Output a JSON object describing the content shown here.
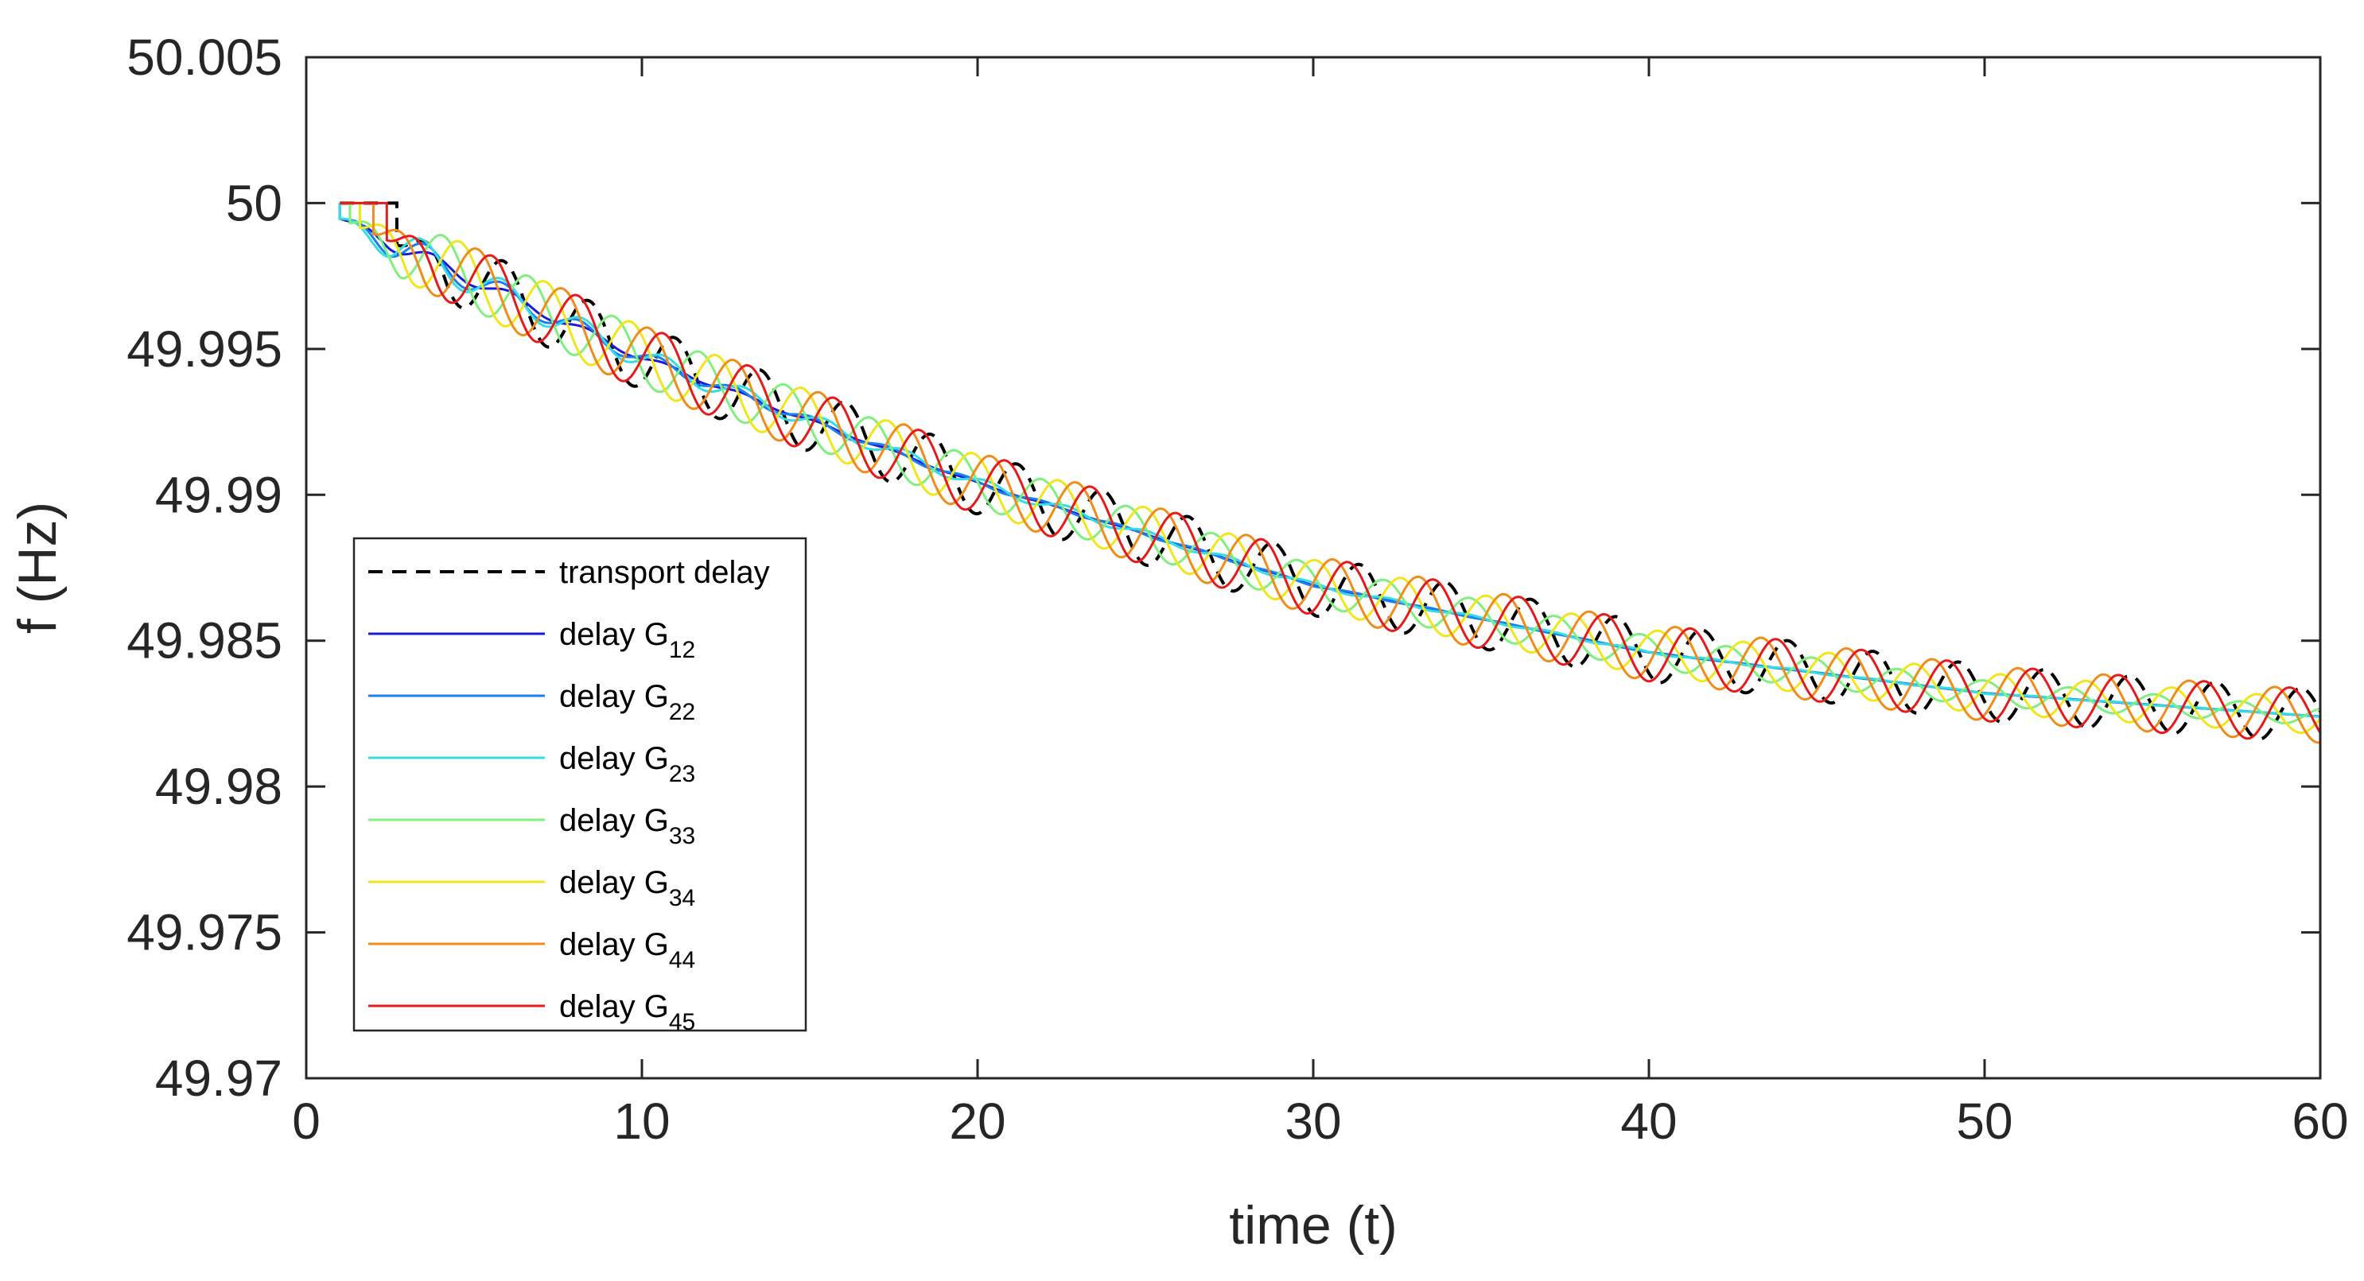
{
  "chart_data": {
    "type": "line",
    "title": "",
    "xlabel": "time (t)",
    "ylabel": "f (Hz)",
    "xlim": [
      0,
      60
    ],
    "ylim": [
      49.97,
      50.005
    ],
    "x_ticks": [
      0,
      10,
      20,
      30,
      40,
      50,
      60
    ],
    "x_tick_labels": [
      "0",
      "10",
      "20",
      "30",
      "40",
      "50",
      "60"
    ],
    "y_ticks": [
      49.97,
      49.975,
      49.98,
      49.985,
      49.99,
      49.995,
      50,
      50.005
    ],
    "y_tick_labels": [
      "49.97",
      "49.975",
      "49.98",
      "49.985",
      "49.99",
      "49.995",
      "50",
      "50.005"
    ],
    "grid": false,
    "legend_position": "left",
    "legend_prefix": "delay G",
    "series": [
      {
        "name": "transport delay",
        "label": "transport delay",
        "color": "#000000",
        "dash": true,
        "start": 2.7,
        "trend": {
          "t": [
            0,
            10,
            20,
            30,
            40,
            50,
            60
          ],
          "f": [
            50.0,
            49.9947,
            49.9904,
            49.9869,
            49.9846,
            49.9832,
            49.9824
          ]
        },
        "osc_amp": [
          0.00115,
          0.00092
        ],
        "osc_period": 2.55,
        "phase": 0
      },
      {
        "name": "delay G12",
        "label": "delay G",
        "sub": "12",
        "color": "#1a1ad9",
        "dash": false,
        "start": 1.0,
        "trend": {
          "t": [
            0,
            10,
            20,
            30,
            40,
            50,
            60
          ],
          "f": [
            50.0,
            49.9947,
            49.9904,
            49.9869,
            49.9846,
            49.9832,
            49.9824
          ]
        },
        "osc_amp": [
          0.00035,
          0.0
        ],
        "osc_period": 2.3,
        "phase": 0.2,
        "osc_decay": 8
      },
      {
        "name": "delay G22",
        "label": "delay G",
        "sub": "22",
        "color": "#1a7ff0",
        "dash": false,
        "start": 1.0,
        "trend": {
          "t": [
            0,
            10,
            20,
            30,
            40,
            50,
            60
          ],
          "f": [
            50.0,
            49.9947,
            49.9904,
            49.9869,
            49.9846,
            49.9832,
            49.9824
          ]
        },
        "osc_amp": [
          0.0006,
          0.0
        ],
        "osc_period": 2.3,
        "phase": 0.8,
        "osc_decay": 10
      },
      {
        "name": "delay G23",
        "label": "delay G",
        "sub": "23",
        "color": "#33dde6",
        "dash": false,
        "start": 1.0,
        "trend": {
          "t": [
            0,
            10,
            20,
            30,
            40,
            50,
            60
          ],
          "f": [
            50.0,
            49.9947,
            49.9904,
            49.9869,
            49.9846,
            49.9832,
            49.9824
          ]
        },
        "osc_amp": [
          0.0007,
          0.0
        ],
        "osc_period": 2.4,
        "phase": 1.4,
        "osc_decay": 14
      },
      {
        "name": "delay G33",
        "label": "delay G",
        "sub": "33",
        "color": "#7ff07f",
        "dash": false,
        "start": 1.3,
        "trend": {
          "t": [
            0,
            10,
            20,
            30,
            40,
            50,
            60
          ],
          "f": [
            50.0,
            49.9947,
            49.9904,
            49.9869,
            49.9846,
            49.9832,
            49.9824
          ]
        },
        "osc_amp": [
          0.0011,
          0.0003
        ],
        "osc_period": 2.55,
        "phase": 1.0
      },
      {
        "name": "delay G34",
        "label": "delay G",
        "sub": "34",
        "color": "#f0e61a",
        "dash": false,
        "start": 1.6,
        "trend": {
          "t": [
            0,
            10,
            20,
            30,
            40,
            50,
            60
          ],
          "f": [
            50.0,
            49.9947,
            49.9904,
            49.9869,
            49.9846,
            49.9832,
            49.9824
          ]
        },
        "osc_amp": [
          0.00115,
          0.0006
        ],
        "osc_period": 2.55,
        "phase": 0.5
      },
      {
        "name": "delay G44",
        "label": "delay G",
        "sub": "44",
        "color": "#f08c1a",
        "dash": false,
        "start": 2.0,
        "trend": {
          "t": [
            0,
            10,
            20,
            30,
            40,
            50,
            60
          ],
          "f": [
            50.0,
            49.9947,
            49.9904,
            49.9869,
            49.9846,
            49.9832,
            49.9824
          ]
        },
        "osc_amp": [
          0.00115,
          0.0009
        ],
        "osc_period": 2.55,
        "phase": 0.2
      },
      {
        "name": "delay G45",
        "label": "delay G",
        "sub": "45",
        "color": "#e61a1a",
        "dash": false,
        "start": 2.4,
        "trend": {
          "t": [
            0,
            10,
            20,
            30,
            40,
            50,
            60
          ],
          "f": [
            50.0,
            49.9947,
            49.9904,
            49.9869,
            49.9846,
            49.9832,
            49.9824
          ]
        },
        "osc_amp": [
          0.00115,
          0.00092
        ],
        "osc_period": 2.55,
        "phase": 0.1
      }
    ]
  }
}
